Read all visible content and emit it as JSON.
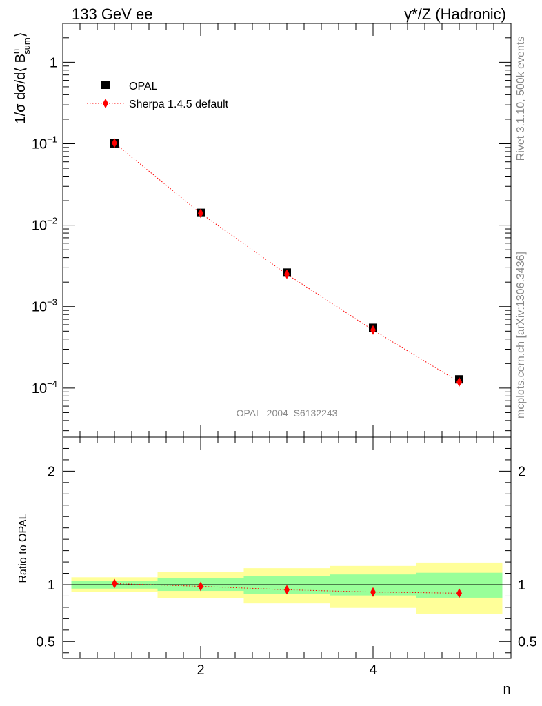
{
  "header": {
    "left_title": "133 GeV ee",
    "right_title_prefix": "γ",
    "right_title_suffix": "*/Z (Hadronic)"
  },
  "side_labels": {
    "rivet": "Rivet 3.1.10,  500k events",
    "mcplots": "mcplots.cern.ch [arXiv:1306.3436]"
  },
  "watermark": "OPAL_2004_S6132243",
  "colors": {
    "data": "#000000",
    "mc": "#ff0000",
    "band_inner": "#99ff99",
    "band_outer": "#ffff99"
  },
  "chart_data": [
    {
      "type": "scatter",
      "scale": "log",
      "ylabel_parts": {
        "pre": "1/σ dσ/d⟨ B",
        "sup": "n",
        "sub": "sum",
        "post": "⟩"
      },
      "xlim": [
        0.4,
        5.6
      ],
      "ylim": [
        2.5e-05,
        3.0
      ],
      "yticks": [
        {
          "value": 1,
          "label": "1",
          "exp": ""
        },
        {
          "value": 0.1,
          "label": "10",
          "exp": "−1"
        },
        {
          "value": 0.01,
          "label": "10",
          "exp": "−2"
        },
        {
          "value": 0.001,
          "label": "10",
          "exp": "−3"
        },
        {
          "value": 0.0001,
          "label": "10",
          "exp": "−4"
        }
      ],
      "legend": {
        "position": "top-left",
        "entries": [
          "OPAL",
          "Sherpa 1.4.5 default"
        ]
      },
      "series": [
        {
          "name": "OPAL",
          "marker": "square",
          "x": [
            1,
            2,
            3,
            4,
            5
          ],
          "values": [
            0.101,
            0.0142,
            0.00262,
            0.00055,
            0.000128
          ]
        },
        {
          "name": "Sherpa 1.4.5 default",
          "marker": "diamond",
          "line": "dotted",
          "x": [
            1,
            2,
            3,
            4,
            5
          ],
          "values": [
            0.102,
            0.014,
            0.0025,
            0.000515,
            0.000119
          ]
        }
      ]
    },
    {
      "type": "scatter",
      "ylabel": "Ratio to OPAL",
      "xlabel": "n",
      "xlim": [
        0.4,
        5.6
      ],
      "ylim": [
        0.35,
        2.3
      ],
      "xticks": [
        {
          "value": 2,
          "label": "2"
        },
        {
          "value": 4,
          "label": "4"
        }
      ],
      "yticks": [
        {
          "value": 0.5,
          "label": "0.5"
        },
        {
          "value": 1,
          "label": "1"
        },
        {
          "value": 2,
          "label": "2"
        }
      ],
      "bands": {
        "edges": [
          0.5,
          1.5,
          2.5,
          3.5,
          4.5,
          5.5
        ],
        "inner_low": [
          0.965,
          0.945,
          0.92,
          0.905,
          0.885
        ],
        "inner_high": [
          1.035,
          1.055,
          1.075,
          1.09,
          1.105
        ],
        "outer_low": [
          0.935,
          0.88,
          0.835,
          0.795,
          0.745
        ],
        "outer_high": [
          1.065,
          1.115,
          1.145,
          1.165,
          1.195
        ]
      },
      "series": [
        {
          "name": "Sherpa 1.4.5 default",
          "marker": "diamond",
          "line": "dotted",
          "x": [
            1,
            2,
            3,
            4,
            5
          ],
          "values": [
            1.01,
            0.985,
            0.955,
            0.935,
            0.925
          ]
        }
      ]
    }
  ]
}
